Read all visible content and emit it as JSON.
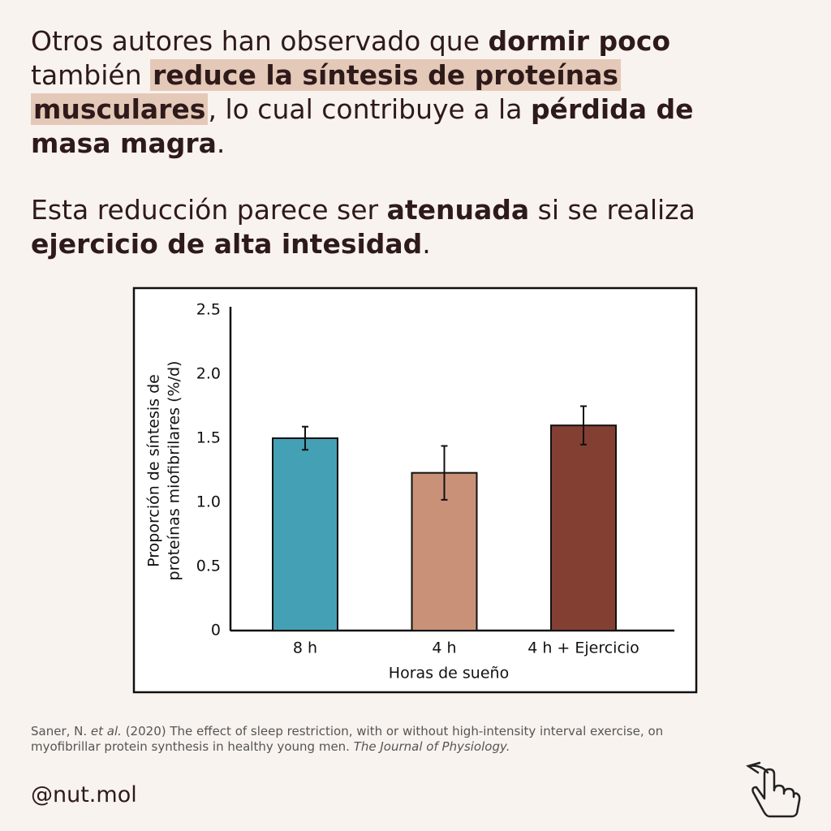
{
  "paragraphs": [
    [
      [
        {
          "text": "Otros autores han observado que ",
          "style": "normal"
        },
        {
          "text": "dormir poco",
          "style": "bold"
        }
      ],
      [
        {
          "text": "también ",
          "style": "normal"
        },
        {
          "text": "reduce la síntesis de proteínas",
          "style": "highlight"
        }
      ],
      [
        {
          "text": "musculares",
          "style": "highlight"
        },
        {
          "text": ", lo cual contribuye a la ",
          "style": "normal"
        },
        {
          "text": "pérdida de",
          "style": "bold"
        }
      ],
      [
        {
          "text": "masa magra",
          "style": "bold"
        },
        {
          "text": ".",
          "style": "normal"
        }
      ]
    ],
    [
      [
        {
          "text": "Esta reducción parece ser ",
          "style": "normal"
        },
        {
          "text": "atenuada",
          "style": "bold"
        },
        {
          "text": " si se realiza",
          "style": "normal"
        }
      ],
      [
        {
          "text": "ejercicio de alta intesidad",
          "style": "bold"
        },
        {
          "text": ".",
          "style": "normal"
        }
      ]
    ]
  ],
  "chart_data": {
    "type": "bar",
    "categories": [
      "8 h",
      "4 h",
      "4 h + Ejercicio"
    ],
    "values": [
      1.5,
      1.23,
      1.6
    ],
    "errors": [
      0.09,
      0.21,
      0.15
    ],
    "colors": [
      "#44a0b4",
      "#c99278",
      "#843f33"
    ],
    "ylim": [
      0,
      2.5
    ],
    "yticks": [
      0,
      0.5,
      {
        "value": 1,
        "label": "1.0"
      },
      1.5,
      {
        "value": 2,
        "label": "2.0"
      },
      2.5
    ],
    "xlabel": "Horas de sueño",
    "ylabel": [
      "Proporción de síntesis de",
      "proteínas miofibrilares (%/d)"
    ]
  },
  "citation": [
    [
      {
        "text": "Saner, N. ",
        "style": "normal"
      },
      {
        "text": "et al.",
        "style": "italic"
      },
      {
        "text": " (2020) The effect of sleep restriction, with or without high-intensity interval exercise, on",
        "style": "normal"
      }
    ],
    [
      {
        "text": "myofibrillar protein synthesis in healthy young men.  ",
        "style": "normal"
      },
      {
        "text": "The Journal of Physiology.",
        "style": "italic"
      }
    ]
  ],
  "handle": "@nut.mol"
}
